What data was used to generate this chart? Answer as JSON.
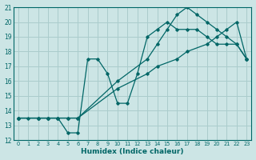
{
  "xlabel": "Humidex (Indice chaleur)",
  "background_color": "#cce5e5",
  "grid_color": "#aacccc",
  "line_color": "#006666",
  "xlim": [
    -0.5,
    23.5
  ],
  "ylim": [
    12,
    21
  ],
  "xticks": [
    0,
    1,
    2,
    3,
    4,
    5,
    6,
    7,
    8,
    9,
    10,
    11,
    12,
    13,
    14,
    15,
    16,
    17,
    18,
    19,
    20,
    21,
    22,
    23
  ],
  "yticks": [
    12,
    13,
    14,
    15,
    16,
    17,
    18,
    19,
    20,
    21
  ],
  "series": [
    {
      "x": [
        0,
        2,
        3,
        4,
        5,
        6,
        10,
        13,
        14,
        16,
        17,
        19,
        20,
        21,
        22,
        23
      ],
      "y": [
        13.5,
        13.5,
        13.5,
        13.5,
        13.5,
        13.5,
        15.5,
        16.5,
        17.0,
        17.5,
        18.0,
        18.5,
        19.0,
        19.5,
        20.0,
        17.5
      ]
    },
    {
      "x": [
        0,
        2,
        3,
        4,
        5,
        6,
        10,
        13,
        14,
        15,
        16,
        17,
        18,
        19,
        20,
        21,
        22,
        23
      ],
      "y": [
        13.5,
        13.5,
        13.5,
        13.5,
        13.5,
        13.5,
        16.0,
        17.5,
        18.5,
        19.5,
        20.5,
        21.0,
        20.5,
        20.0,
        19.5,
        19.0,
        18.5,
        17.5
      ]
    },
    {
      "x": [
        0,
        1,
        2,
        3,
        4,
        5,
        6,
        7,
        8,
        9,
        10,
        11,
        12,
        13,
        14,
        15,
        16,
        17,
        18,
        19,
        20,
        21,
        22,
        23
      ],
      "y": [
        13.5,
        13.5,
        13.5,
        13.5,
        13.5,
        12.5,
        12.5,
        17.5,
        17.5,
        16.5,
        14.5,
        14.5,
        16.5,
        19.0,
        19.5,
        20.0,
        19.5,
        19.5,
        19.5,
        19.0,
        18.5,
        18.5,
        18.5,
        17.5
      ]
    }
  ]
}
